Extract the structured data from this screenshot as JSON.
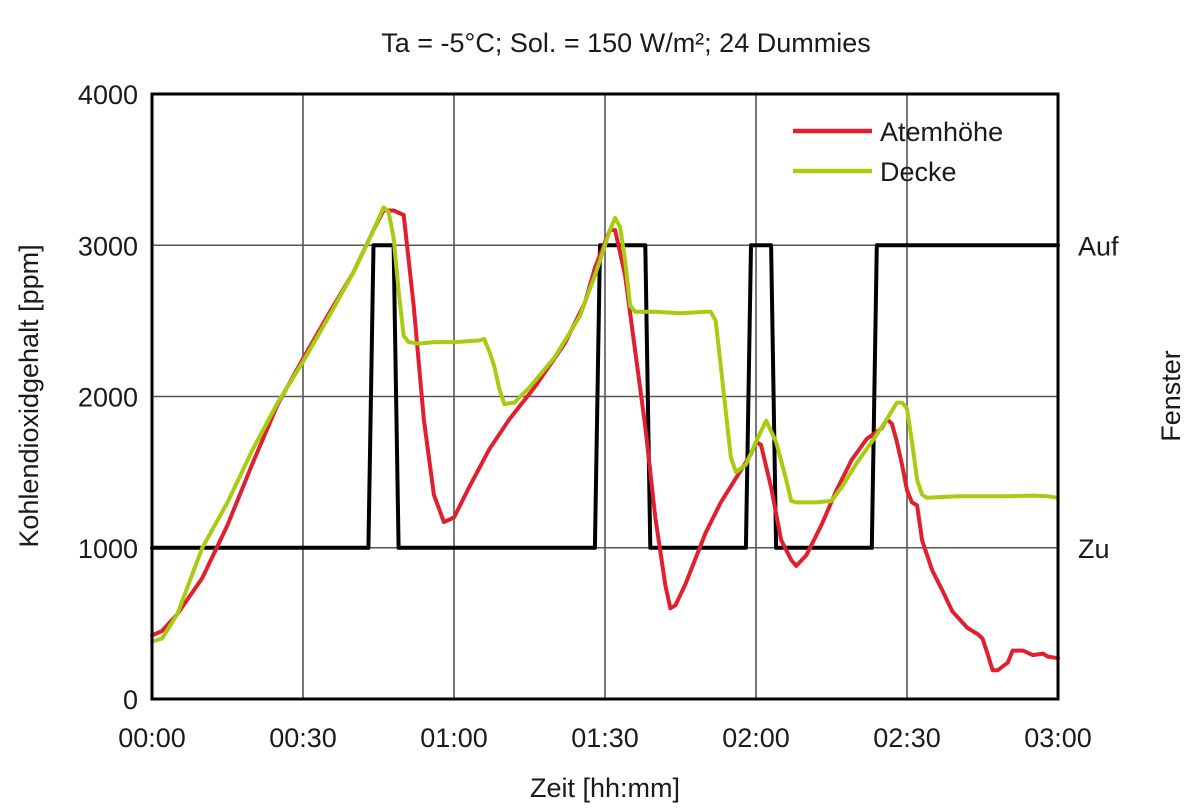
{
  "chart_data": {
    "type": "line",
    "title": "Ta = -5°C; Sol. = 150 W/m²; 24 Dummies",
    "xlabel": "Zeit [hh:mm]",
    "ylabel": "Kohlendioxidgehalt [ppm]",
    "y2label": "Fenster",
    "xlim": [
      0,
      180
    ],
    "ylim": [
      0,
      4000
    ],
    "x_ticks": [
      0,
      30,
      60,
      90,
      120,
      150,
      180
    ],
    "x_tick_labels": [
      "00:00",
      "00:30",
      "01:00",
      "01:30",
      "02:00",
      "02:30",
      "03:00"
    ],
    "y_ticks": [
      0,
      1000,
      2000,
      3000,
      4000
    ],
    "y_tick_labels": [
      "0",
      "1000",
      "2000",
      "3000",
      "4000"
    ],
    "y2_ticks": [
      1000,
      3000
    ],
    "y2_tick_labels": [
      "Zu",
      "Auf"
    ],
    "grid": true,
    "legend_position": "top-right",
    "x_unit": "minutes",
    "series": [
      {
        "name": "Atemhöhe",
        "color": "#e0202e",
        "in_legend": true,
        "points": [
          [
            0,
            420
          ],
          [
            2,
            450
          ],
          [
            5,
            560
          ],
          [
            10,
            800
          ],
          [
            15,
            1150
          ],
          [
            20,
            1560
          ],
          [
            25,
            1950
          ],
          [
            30,
            2250
          ],
          [
            35,
            2540
          ],
          [
            40,
            2820
          ],
          [
            44,
            3100
          ],
          [
            46,
            3230
          ],
          [
            48,
            3230
          ],
          [
            50,
            3200
          ],
          [
            52,
            2600
          ],
          [
            54,
            1850
          ],
          [
            56,
            1350
          ],
          [
            58,
            1170
          ],
          [
            60,
            1200
          ],
          [
            63,
            1400
          ],
          [
            67,
            1650
          ],
          [
            71,
            1850
          ],
          [
            76,
            2060
          ],
          [
            82,
            2350
          ],
          [
            86,
            2620
          ],
          [
            88,
            2850
          ],
          [
            90,
            3020
          ],
          [
            91,
            3100
          ],
          [
            92,
            3100
          ],
          [
            94,
            2800
          ],
          [
            96,
            2300
          ],
          [
            98,
            1800
          ],
          [
            100,
            1200
          ],
          [
            102,
            750
          ],
          [
            103,
            600
          ],
          [
            104,
            620
          ],
          [
            106,
            760
          ],
          [
            110,
            1100
          ],
          [
            113,
            1300
          ],
          [
            116,
            1460
          ],
          [
            119,
            1620
          ],
          [
            120,
            1700
          ],
          [
            121,
            1680
          ],
          [
            123,
            1400
          ],
          [
            125,
            1050
          ],
          [
            127,
            920
          ],
          [
            128,
            880
          ],
          [
            130,
            950
          ],
          [
            133,
            1150
          ],
          [
            136,
            1380
          ],
          [
            139,
            1580
          ],
          [
            142,
            1720
          ],
          [
            145,
            1790
          ],
          [
            146,
            1850
          ],
          [
            147,
            1820
          ],
          [
            148,
            1700
          ],
          [
            149,
            1550
          ],
          [
            150,
            1380
          ],
          [
            151,
            1300
          ],
          [
            152,
            1280
          ],
          [
            153,
            1050
          ],
          [
            155,
            850
          ],
          [
            157,
            720
          ],
          [
            159,
            580
          ],
          [
            162,
            470
          ],
          [
            164,
            430
          ],
          [
            165,
            400
          ],
          [
            166,
            300
          ],
          [
            167,
            190
          ],
          [
            168,
            190
          ],
          [
            170,
            240
          ],
          [
            171,
            320
          ],
          [
            173,
            320
          ],
          [
            175,
            290
          ],
          [
            177,
            300
          ],
          [
            178,
            280
          ],
          [
            180,
            270
          ]
        ]
      },
      {
        "name": "Decke",
        "color": "#a8cc10",
        "in_legend": true,
        "points": [
          [
            0,
            380
          ],
          [
            2,
            400
          ],
          [
            5,
            560
          ],
          [
            10,
            1000
          ],
          [
            15,
            1300
          ],
          [
            20,
            1650
          ],
          [
            25,
            1960
          ],
          [
            30,
            2230
          ],
          [
            35,
            2520
          ],
          [
            40,
            2820
          ],
          [
            44,
            3100
          ],
          [
            46,
            3250
          ],
          [
            47,
            3220
          ],
          [
            48,
            3050
          ],
          [
            49,
            2700
          ],
          [
            50,
            2400
          ],
          [
            51,
            2360
          ],
          [
            53,
            2350
          ],
          [
            56,
            2360
          ],
          [
            60,
            2360
          ],
          [
            65,
            2370
          ],
          [
            66,
            2380
          ],
          [
            67,
            2300
          ],
          [
            68,
            2200
          ],
          [
            69,
            2050
          ],
          [
            70,
            1950
          ],
          [
            72,
            1960
          ],
          [
            75,
            2060
          ],
          [
            80,
            2260
          ],
          [
            85,
            2530
          ],
          [
            88,
            2800
          ],
          [
            90,
            3000
          ],
          [
            91,
            3100
          ],
          [
            92,
            3180
          ],
          [
            93,
            3120
          ],
          [
            94,
            2900
          ],
          [
            95,
            2600
          ],
          [
            96,
            2560
          ],
          [
            100,
            2560
          ],
          [
            105,
            2550
          ],
          [
            110,
            2560
          ],
          [
            111,
            2560
          ],
          [
            112,
            2500
          ],
          [
            113,
            2200
          ],
          [
            114,
            1900
          ],
          [
            115,
            1600
          ],
          [
            116,
            1500
          ],
          [
            118,
            1550
          ],
          [
            120,
            1700
          ],
          [
            122,
            1840
          ],
          [
            124,
            1700
          ],
          [
            126,
            1450
          ],
          [
            127,
            1310
          ],
          [
            128,
            1300
          ],
          [
            132,
            1300
          ],
          [
            135,
            1310
          ],
          [
            137,
            1400
          ],
          [
            140,
            1560
          ],
          [
            143,
            1700
          ],
          [
            146,
            1850
          ],
          [
            148,
            1960
          ],
          [
            149,
            1960
          ],
          [
            150,
            1920
          ],
          [
            151,
            1700
          ],
          [
            152,
            1450
          ],
          [
            153,
            1350
          ],
          [
            154,
            1330
          ],
          [
            160,
            1340
          ],
          [
            165,
            1340
          ],
          [
            170,
            1340
          ],
          [
            175,
            1345
          ],
          [
            178,
            1340
          ],
          [
            180,
            1330
          ]
        ]
      },
      {
        "name": "Fenster",
        "color": "#000000",
        "in_legend": false,
        "axis": "y2",
        "points": [
          [
            0,
            1000
          ],
          [
            43,
            1000
          ],
          [
            44,
            3000
          ],
          [
            48,
            3000
          ],
          [
            49,
            1000
          ],
          [
            88,
            1000
          ],
          [
            89,
            3000
          ],
          [
            98,
            3000
          ],
          [
            99,
            1000
          ],
          [
            118,
            1000
          ],
          [
            119,
            3000
          ],
          [
            123,
            3000
          ],
          [
            124,
            1000
          ],
          [
            143,
            1000
          ],
          [
            144,
            3000
          ],
          [
            180,
            3000
          ]
        ]
      }
    ]
  }
}
